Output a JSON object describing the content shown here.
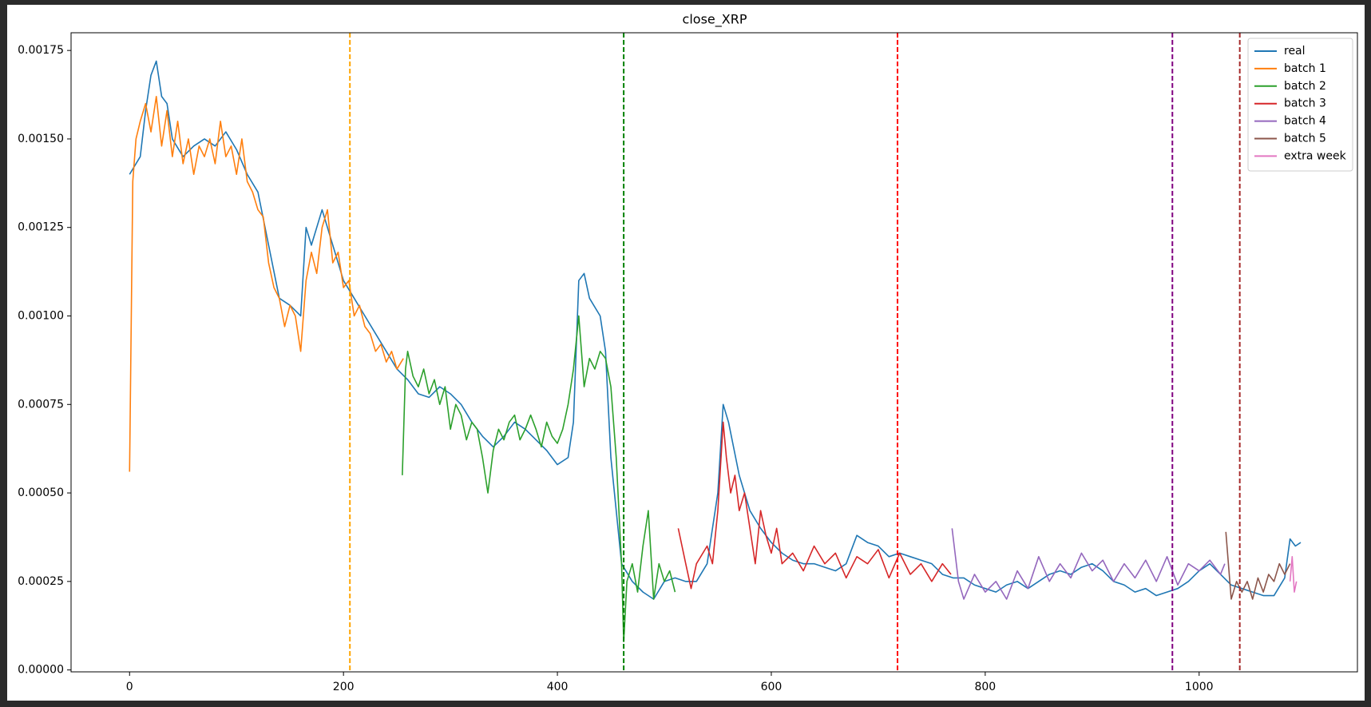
{
  "chart_data": {
    "type": "line",
    "title": "close_XRP",
    "xlim": [
      -54.7,
      1148
    ],
    "ylim": [
      -5.4e-06,
      0.0018
    ],
    "xticks": [
      0,
      200,
      400,
      600,
      800,
      1000
    ],
    "yticks": [
      {
        "value": 0,
        "label": "0.00000"
      },
      {
        "value": 0.00025,
        "label": "0.00025"
      },
      {
        "value": 0.0005,
        "label": "0.00050"
      },
      {
        "value": 0.00075,
        "label": "0.00075"
      },
      {
        "value": 0.001,
        "label": "0.00100"
      },
      {
        "value": 0.00125,
        "label": "0.00125"
      },
      {
        "value": 0.0015,
        "label": "0.00150"
      },
      {
        "value": 0.00175,
        "label": "0.00175"
      }
    ],
    "grid": false,
    "legend": "upper right",
    "vlines": [
      {
        "x": 206,
        "color": "#ffa500"
      },
      {
        "x": 462,
        "color": "#008000"
      },
      {
        "x": 718,
        "color": "#ff0000"
      },
      {
        "x": 975,
        "color": "#800080"
      },
      {
        "x": 1038,
        "color": "#a52a2a"
      }
    ],
    "series": [
      {
        "name": "real",
        "color": "#1f77b4",
        "x": [
          0,
          10,
          15,
          20,
          25,
          30,
          35,
          40,
          50,
          60,
          70,
          80,
          90,
          100,
          110,
          120,
          130,
          140,
          150,
          160,
          165,
          170,
          180,
          190,
          200,
          210,
          220,
          230,
          240,
          250,
          260,
          270,
          280,
          290,
          300,
          310,
          320,
          330,
          340,
          350,
          360,
          370,
          380,
          390,
          400,
          410,
          415,
          420,
          425,
          430,
          440,
          445,
          450,
          455,
          460,
          470,
          480,
          490,
          500,
          510,
          520,
          530,
          540,
          550,
          555,
          560,
          570,
          580,
          590,
          600,
          610,
          620,
          630,
          640,
          650,
          660,
          670,
          680,
          690,
          700,
          710,
          720,
          730,
          740,
          750,
          760,
          770,
          780,
          790,
          800,
          810,
          820,
          830,
          840,
          850,
          860,
          870,
          880,
          890,
          900,
          910,
          920,
          930,
          940,
          950,
          960,
          970,
          980,
          990,
          1000,
          1010,
          1020,
          1030,
          1040,
          1050,
          1060,
          1070,
          1080,
          1085,
          1090,
          1095
        ],
        "values": [
          0.0014,
          0.00145,
          0.00158,
          0.00168,
          0.00172,
          0.00162,
          0.0016,
          0.0015,
          0.00145,
          0.00148,
          0.0015,
          0.00148,
          0.00152,
          0.00147,
          0.0014,
          0.00135,
          0.0012,
          0.00105,
          0.00103,
          0.001,
          0.00125,
          0.0012,
          0.0013,
          0.0012,
          0.0011,
          0.00105,
          0.001,
          0.00095,
          0.0009,
          0.00085,
          0.00082,
          0.00078,
          0.00077,
          0.0008,
          0.00078,
          0.00075,
          0.0007,
          0.00066,
          0.00063,
          0.00066,
          0.0007,
          0.00068,
          0.00065,
          0.00062,
          0.00058,
          0.0006,
          0.0007,
          0.0011,
          0.00112,
          0.00105,
          0.001,
          0.0009,
          0.0006,
          0.00045,
          0.0003,
          0.00025,
          0.00022,
          0.0002,
          0.00025,
          0.00026,
          0.00025,
          0.00025,
          0.0003,
          0.0005,
          0.00075,
          0.0007,
          0.00055,
          0.00045,
          0.0004,
          0.00036,
          0.00033,
          0.00031,
          0.0003,
          0.0003,
          0.00029,
          0.00028,
          0.0003,
          0.00038,
          0.00036,
          0.00035,
          0.00032,
          0.00033,
          0.00032,
          0.00031,
          0.0003,
          0.00027,
          0.00026,
          0.00026,
          0.00024,
          0.00023,
          0.00022,
          0.00024,
          0.00025,
          0.00023,
          0.00025,
          0.00027,
          0.00028,
          0.00027,
          0.00029,
          0.0003,
          0.00028,
          0.00025,
          0.00024,
          0.00022,
          0.00023,
          0.00021,
          0.00022,
          0.00023,
          0.00025,
          0.00028,
          0.0003,
          0.00027,
          0.00024,
          0.00023,
          0.00022,
          0.00021,
          0.00021,
          0.00026,
          0.00037,
          0.00035,
          0.00036
        ]
      },
      {
        "name": "batch 1",
        "color": "#ff7f0e",
        "x": [
          0,
          3,
          6,
          10,
          15,
          20,
          25,
          30,
          35,
          40,
          45,
          50,
          55,
          60,
          65,
          70,
          75,
          80,
          85,
          90,
          95,
          100,
          105,
          110,
          115,
          120,
          125,
          130,
          135,
          140,
          145,
          150,
          155,
          160,
          165,
          170,
          175,
          180,
          185,
          190,
          195,
          200,
          205,
          210,
          215,
          220,
          225,
          230,
          235,
          240,
          245,
          250,
          256
        ],
        "values": [
          0.00056,
          0.00138,
          0.0015,
          0.00155,
          0.0016,
          0.00152,
          0.00162,
          0.00148,
          0.00158,
          0.00145,
          0.00155,
          0.00143,
          0.0015,
          0.0014,
          0.00148,
          0.00145,
          0.0015,
          0.00143,
          0.00155,
          0.00145,
          0.00148,
          0.0014,
          0.0015,
          0.00138,
          0.00135,
          0.0013,
          0.00128,
          0.00115,
          0.00108,
          0.00105,
          0.00097,
          0.00103,
          0.001,
          0.0009,
          0.0011,
          0.00118,
          0.00112,
          0.00125,
          0.0013,
          0.00115,
          0.00118,
          0.00108,
          0.0011,
          0.001,
          0.00103,
          0.00097,
          0.00095,
          0.0009,
          0.00092,
          0.00087,
          0.0009,
          0.00085,
          0.00088
        ]
      },
      {
        "name": "batch 2",
        "color": "#2ca02c",
        "x": [
          255,
          258,
          260,
          265,
          270,
          275,
          280,
          285,
          290,
          295,
          300,
          305,
          310,
          315,
          320,
          325,
          330,
          335,
          340,
          345,
          350,
          355,
          360,
          365,
          370,
          375,
          380,
          385,
          390,
          395,
          400,
          405,
          410,
          415,
          420,
          425,
          430,
          435,
          440,
          445,
          450,
          455,
          460,
          462,
          465,
          470,
          475,
          480,
          485,
          490,
          495,
          500,
          505,
          510
        ],
        "values": [
          0.00055,
          0.00085,
          0.0009,
          0.00083,
          0.0008,
          0.00085,
          0.00078,
          0.00082,
          0.00075,
          0.0008,
          0.00068,
          0.00075,
          0.00072,
          0.00065,
          0.0007,
          0.00068,
          0.0006,
          0.0005,
          0.00062,
          0.00068,
          0.00065,
          0.0007,
          0.00072,
          0.00065,
          0.00068,
          0.00072,
          0.00068,
          0.00063,
          0.0007,
          0.00066,
          0.00064,
          0.00068,
          0.00075,
          0.00085,
          0.001,
          0.0008,
          0.00088,
          0.00085,
          0.0009,
          0.00088,
          0.0008,
          0.0006,
          0.0003,
          8e-05,
          0.00025,
          0.0003,
          0.00022,
          0.00035,
          0.00045,
          0.0002,
          0.0003,
          0.00025,
          0.00028,
          0.00022
        ]
      },
      {
        "name": "batch 3",
        "color": "#d62728",
        "x": [
          513,
          520,
          525,
          530,
          540,
          545,
          550,
          555,
          558,
          562,
          566,
          570,
          575,
          580,
          585,
          590,
          595,
          600,
          605,
          610,
          620,
          630,
          640,
          650,
          660,
          670,
          680,
          690,
          700,
          710,
          720,
          730,
          740,
          750,
          760,
          768
        ],
        "values": [
          0.0004,
          0.0003,
          0.00023,
          0.0003,
          0.00035,
          0.0003,
          0.00045,
          0.0007,
          0.0006,
          0.0005,
          0.00055,
          0.00045,
          0.0005,
          0.0004,
          0.0003,
          0.00045,
          0.00038,
          0.00033,
          0.0004,
          0.0003,
          0.00033,
          0.00028,
          0.00035,
          0.0003,
          0.00033,
          0.00026,
          0.00032,
          0.0003,
          0.00034,
          0.00026,
          0.00033,
          0.00027,
          0.0003,
          0.00025,
          0.0003,
          0.00027
        ]
      },
      {
        "name": "batch 4",
        "color": "#9467bd",
        "x": [
          769,
          775,
          780,
          790,
          800,
          810,
          820,
          830,
          840,
          850,
          860,
          870,
          880,
          890,
          900,
          910,
          920,
          930,
          940,
          950,
          960,
          970,
          980,
          990,
          1000,
          1010,
          1020,
          1024
        ],
        "values": [
          0.0004,
          0.00025,
          0.0002,
          0.00027,
          0.00022,
          0.00025,
          0.0002,
          0.00028,
          0.00023,
          0.00032,
          0.00025,
          0.0003,
          0.00026,
          0.00033,
          0.00028,
          0.00031,
          0.00025,
          0.0003,
          0.00026,
          0.00031,
          0.00025,
          0.00032,
          0.00024,
          0.0003,
          0.00028,
          0.00031,
          0.00027,
          0.0003
        ]
      },
      {
        "name": "batch 5",
        "color": "#8c564b",
        "x": [
          1025,
          1030,
          1035,
          1040,
          1045,
          1050,
          1055,
          1060,
          1065,
          1070,
          1075,
          1080,
          1085
        ],
        "values": [
          0.00039,
          0.0002,
          0.00025,
          0.00022,
          0.00025,
          0.0002,
          0.00026,
          0.00022,
          0.00027,
          0.00025,
          0.0003,
          0.00027,
          0.0003
        ]
      },
      {
        "name": "extra week",
        "color": "#e377c2",
        "x": [
          1085,
          1087,
          1089,
          1091
        ],
        "values": [
          0.00025,
          0.00032,
          0.00022,
          0.00025
        ]
      }
    ]
  }
}
